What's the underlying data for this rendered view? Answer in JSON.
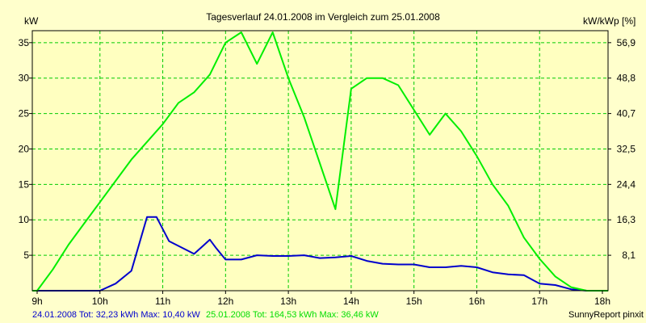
{
  "chart_data": {
    "type": "line",
    "title": "Tagesverlauf 24.01.2008 im Vergleich zum 25.01.2008",
    "ylabel": "kW",
    "y2label": "kW/kWp [%]",
    "xlim": [
      9,
      18
    ],
    "ylim": [
      0,
      36.46
    ],
    "grid": true,
    "x_ticks": [
      "9h",
      "10h",
      "11h",
      "12h",
      "13h",
      "14h",
      "15h",
      "16h",
      "17h",
      "18h"
    ],
    "y_ticks": [
      5,
      10,
      15,
      20,
      25,
      30,
      35
    ],
    "y_tick_labels": [
      "5",
      "10",
      "15",
      "20",
      "25",
      "30",
      "35"
    ],
    "y2_ticks": [
      5,
      10,
      15,
      20,
      25,
      30,
      35
    ],
    "y2_tick_labels": [
      "8,1",
      "16,3",
      "24,4",
      "32,5",
      "40,7",
      "48,8",
      "56,9"
    ],
    "series": [
      {
        "name": "24.01.2008 Tot: 32,23 kWh Max: 10,40 kW",
        "color": "#0000cc",
        "x": [
          8.75,
          9.25,
          9.5,
          9.75,
          10.0,
          10.25,
          10.5,
          10.75,
          10.9,
          11.1,
          11.5,
          11.75,
          11.85,
          12.0,
          12.25,
          12.5,
          12.75,
          13.0,
          13.25,
          13.5,
          13.75,
          14.0,
          14.25,
          14.5,
          14.75,
          15.0,
          15.25,
          15.5,
          15.75,
          16.0,
          16.25,
          16.5,
          16.75,
          17.0,
          17.25,
          17.5,
          17.75,
          18.0,
          18.25
        ],
        "y": [
          0,
          0,
          0,
          0,
          0,
          1.0,
          2.8,
          10.4,
          10.4,
          7.0,
          5.2,
          7.2,
          6.0,
          4.4,
          4.4,
          5.0,
          4.9,
          4.9,
          5.0,
          4.6,
          4.7,
          4.9,
          4.2,
          3.8,
          3.7,
          3.7,
          3.3,
          3.3,
          3.5,
          3.3,
          2.6,
          2.3,
          2.2,
          1.0,
          0.8,
          0.2,
          0,
          0,
          0
        ]
      },
      {
        "name": "25.01.2008 Tot: 164,53 kWh Max: 36,46 kW",
        "color": "#00ee00",
        "x": [
          8.75,
          9.0,
          9.25,
          9.5,
          9.75,
          10.0,
          10.25,
          10.5,
          10.75,
          11.0,
          11.25,
          11.5,
          11.75,
          12.0,
          12.25,
          12.5,
          12.75,
          13.0,
          13.25,
          13.5,
          13.75,
          14.0,
          14.25,
          14.5,
          14.75,
          15.0,
          15.25,
          15.5,
          15.75,
          16.0,
          16.25,
          16.5,
          16.75,
          17.0,
          17.25,
          17.5,
          17.75,
          18.0,
          18.25
        ],
        "y": [
          0,
          0,
          3.0,
          6.5,
          9.5,
          12.5,
          15.5,
          18.5,
          21.0,
          23.5,
          26.5,
          28.0,
          30.5,
          35.0,
          36.46,
          32.0,
          36.46,
          30.0,
          24.5,
          18.0,
          11.5,
          28.5,
          30.0,
          30.0,
          29.0,
          25.5,
          22.0,
          25.0,
          22.5,
          19.0,
          15.0,
          12.0,
          7.5,
          4.5,
          2.0,
          0.5,
          0,
          0,
          0
        ]
      }
    ],
    "footer_right": "SunnyReport pinxit"
  }
}
